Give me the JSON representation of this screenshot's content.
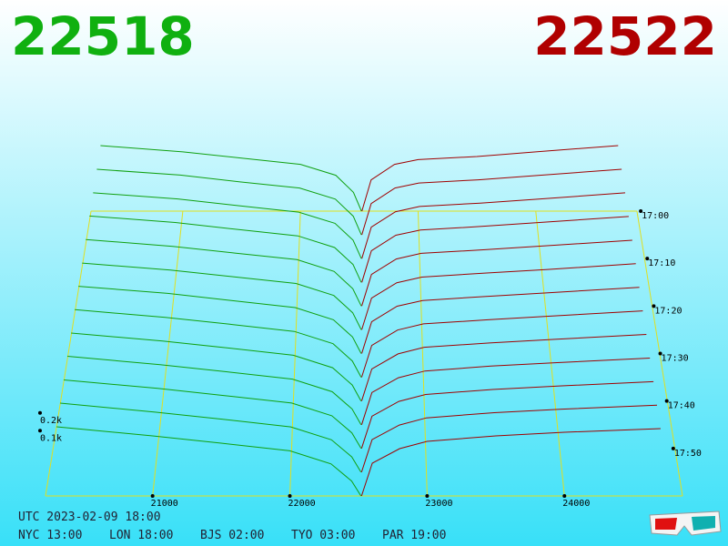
{
  "chart_data": {
    "type": "depth3d",
    "bid_price": "22518",
    "ask_price": "22522",
    "bid_color": "#10a010",
    "ask_color": "#a00000",
    "floor_color": "#e0e020",
    "xlim": [
      20220,
      24860
    ],
    "xticks": [
      21000,
      22000,
      23000,
      24000
    ],
    "ylim": [
      0,
      1000
    ],
    "yticks": [
      {
        "value": 100,
        "label": "0.1k"
      },
      {
        "value": 200,
        "label": "0.2k"
      }
    ],
    "zlim": [
      0,
      60
    ],
    "zticks": [
      {
        "value": 0,
        "label": "17:00"
      },
      {
        "value": 10,
        "label": "17:10"
      },
      {
        "value": 20,
        "label": "17:20"
      },
      {
        "value": 30,
        "label": "17:30"
      },
      {
        "value": 40,
        "label": "17:40"
      },
      {
        "value": 50,
        "label": "17:50"
      }
    ],
    "bid_x": [
      20300,
      21000,
      21500,
      22000,
      22300,
      22450,
      22518
    ],
    "ask_x": [
      22522,
      22600,
      22800,
      23000,
      23500,
      24000,
      24700
    ],
    "snapshots": [
      {
        "z": 0,
        "bids": [
          420,
          380,
          340,
          300,
          230,
          120,
          0
        ],
        "asks": [
          0,
          200,
          300,
          330,
          350,
          380,
          420
        ]
      },
      {
        "z": 5,
        "bids": [
          415,
          378,
          335,
          296,
          226,
          118,
          0
        ],
        "asks": [
          0,
          198,
          296,
          328,
          348,
          376,
          415
        ]
      },
      {
        "z": 10,
        "bids": [
          410,
          372,
          330,
          290,
          220,
          115,
          0
        ],
        "asks": [
          0,
          196,
          292,
          325,
          346,
          372,
          410
        ]
      },
      {
        "z": 15,
        "bids": [
          408,
          368,
          326,
          286,
          214,
          110,
          0
        ],
        "asks": [
          0,
          194,
          290,
          322,
          344,
          370,
          405
        ]
      },
      {
        "z": 20,
        "bids": [
          404,
          362,
          322,
          282,
          210,
          105,
          0
        ],
        "asks": [
          0,
          192,
          286,
          320,
          342,
          366,
          400
        ]
      },
      {
        "z": 25,
        "bids": [
          400,
          358,
          318,
          278,
          206,
          102,
          0
        ],
        "asks": [
          0,
          190,
          282,
          316,
          340,
          362,
          396
        ]
      },
      {
        "z": 30,
        "bids": [
          398,
          356,
          314,
          272,
          200,
          98,
          0
        ],
        "asks": [
          0,
          188,
          280,
          314,
          338,
          360,
          392
        ]
      },
      {
        "z": 35,
        "bids": [
          395,
          350,
          310,
          268,
          196,
          95,
          0
        ],
        "asks": [
          0,
          186,
          276,
          312,
          336,
          358,
          388
        ]
      },
      {
        "z": 40,
        "bids": [
          392,
          346,
          306,
          264,
          192,
          92,
          0
        ],
        "asks": [
          0,
          185,
          272,
          310,
          335,
          356,
          384
        ]
      },
      {
        "z": 45,
        "bids": [
          390,
          342,
          302,
          260,
          188,
          90,
          0
        ],
        "asks": [
          0,
          184,
          268,
          306,
          334,
          354,
          380
        ]
      },
      {
        "z": 50,
        "bids": [
          386,
          338,
          298,
          256,
          184,
          88,
          0
        ],
        "asks": [
          0,
          182,
          265,
          304,
          332,
          352,
          376
        ]
      },
      {
        "z": 55,
        "bids": [
          384,
          334,
          294,
          252,
          180,
          85,
          0
        ],
        "asks": [
          0,
          181,
          262,
          302,
          331,
          351,
          373
        ]
      },
      {
        "z": 60,
        "bids": [
          380,
          330,
          290,
          248,
          176,
          82,
          0
        ],
        "asks": [
          0,
          180,
          260,
          300,
          330,
          350,
          370
        ]
      }
    ],
    "utc": "UTC 2023-02-09 18:00",
    "cities": [
      "NYC 13:00",
      "LON 18:00",
      "BJS 02:00",
      "TYO 03:00",
      "PAR 19:00"
    ]
  }
}
